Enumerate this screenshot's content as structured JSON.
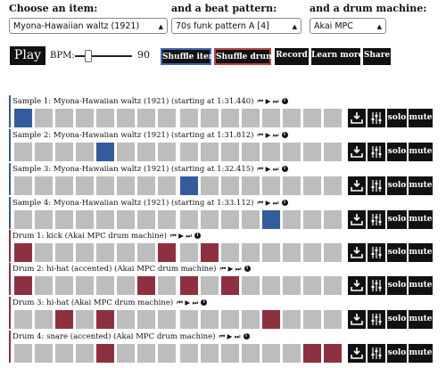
{
  "selectors": {
    "item": {
      "label": "Choose an item:",
      "value": "Myona-Hawaiian waltz (1921)"
    },
    "pattern": {
      "label": "and a beat pattern:",
      "value": "70s funk pattern A [4]"
    },
    "machine": {
      "label": "and a drum machine:",
      "value": "Akai MPC"
    }
  },
  "controls": {
    "play": "Play",
    "bpm_label": "BPM:",
    "bpm_value": "90",
    "shuffle_item": "Shuffle item",
    "shuffle_drums": "Shuffle drums",
    "record": "Record",
    "learn_more": "Learn more",
    "share": "Share"
  },
  "track_buttons": {
    "solo": "solo",
    "mute": "mute"
  },
  "colors": {
    "sample_accent": "#345c9c",
    "drum_accent": "#8e3040"
  },
  "tracks": [
    {
      "kind": "sample",
      "label": "Sample 1: Myona-Hawaiian waltz (1921) (starting at 1:31.440)",
      "steps": [
        1,
        0,
        0,
        0,
        0,
        0,
        0,
        0,
        0,
        0,
        0,
        0,
        0,
        0,
        0,
        0
      ]
    },
    {
      "kind": "sample",
      "label": "Sample 2: Myona-Hawaiian waltz (1921) (starting at 1:31.812)",
      "steps": [
        0,
        0,
        0,
        0,
        1,
        0,
        0,
        0,
        0,
        0,
        0,
        0,
        0,
        0,
        0,
        0
      ]
    },
    {
      "kind": "sample",
      "label": "Sample 3: Myona-Hawaiian waltz (1921) (starting at 1:32.415)",
      "steps": [
        0,
        0,
        0,
        0,
        0,
        0,
        0,
        0,
        1,
        0,
        0,
        0,
        0,
        0,
        0,
        0
      ]
    },
    {
      "kind": "sample",
      "label": "Sample 4: Myona-Hawaiian waltz (1921) (starting at 1:33.112)",
      "steps": [
        0,
        0,
        0,
        0,
        0,
        0,
        0,
        0,
        0,
        0,
        0,
        0,
        1,
        0,
        0,
        0
      ]
    },
    {
      "kind": "drum",
      "label": "Drum 1: kick (Akai MPC drum machine)",
      "steps": [
        1,
        0,
        0,
        0,
        0,
        0,
        0,
        1,
        0,
        1,
        0,
        0,
        0,
        0,
        0,
        0
      ]
    },
    {
      "kind": "drum",
      "label": "Drum 2: hi-hat (accented) (Akai MPC drum machine)",
      "steps": [
        1,
        0,
        0,
        0,
        0,
        0,
        1,
        0,
        1,
        0,
        1,
        0,
        0,
        0,
        0,
        0
      ]
    },
    {
      "kind": "drum",
      "label": "Drum 3: hi-hat (Akai MPC drum machine)",
      "steps": [
        0,
        0,
        1,
        0,
        1,
        0,
        0,
        0,
        0,
        0,
        0,
        0,
        1,
        0,
        0,
        0
      ]
    },
    {
      "kind": "drum",
      "label": "Drum 4: snare (accented) (Akai MPC drum machine)",
      "steps": [
        0,
        0,
        0,
        0,
        1,
        0,
        0,
        0,
        0,
        0,
        0,
        0,
        0,
        0,
        1,
        1
      ]
    }
  ]
}
